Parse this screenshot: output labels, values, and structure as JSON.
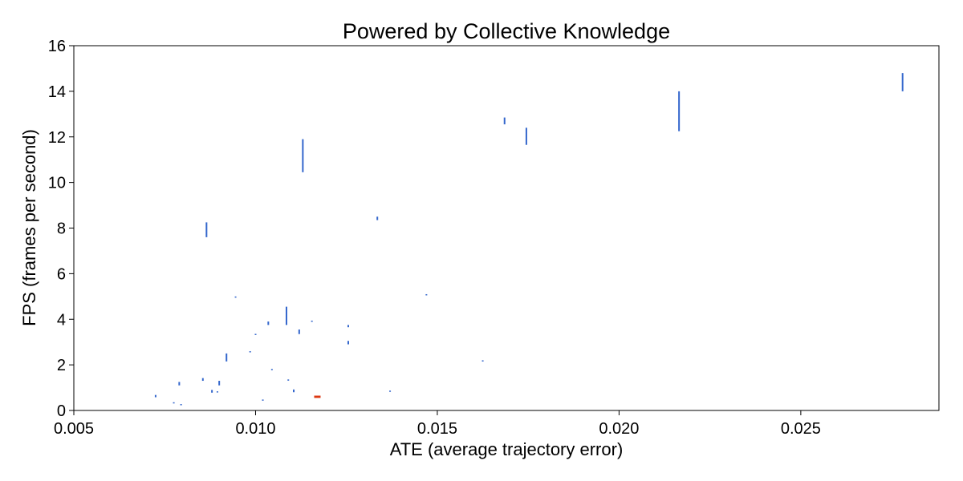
{
  "chart_data": {
    "type": "scatter",
    "title": "Powered by Collective Knowledge",
    "xlabel": "ATE (average trajectory error)",
    "ylabel": "FPS (frames per second)",
    "xlim": [
      0.005,
      0.0288
    ],
    "ylim": [
      0,
      16
    ],
    "xticks": [
      "0.005",
      "0.010",
      "0.015",
      "0.020",
      "0.025"
    ],
    "yticks": [
      "0",
      "2",
      "4",
      "6",
      "8",
      "10",
      "12",
      "14",
      "16"
    ],
    "grid": false,
    "legend": "none",
    "colors": {
      "default": "#3366cc",
      "highlight": "#dc3912"
    },
    "points": [
      {
        "x": 0.00725,
        "y_low": 0.58,
        "y_high": 0.68
      },
      {
        "x": 0.00775,
        "y_low": 0.33,
        "y_high": 0.36
      },
      {
        "x": 0.0079,
        "y_low": 1.1,
        "y_high": 1.25
      },
      {
        "x": 0.00795,
        "y_low": 0.25,
        "y_high": 0.28
      },
      {
        "x": 0.00855,
        "y_low": 1.3,
        "y_high": 1.42
      },
      {
        "x": 0.00865,
        "y_low": 7.6,
        "y_high": 8.25
      },
      {
        "x": 0.0088,
        "y_low": 0.78,
        "y_high": 0.9
      },
      {
        "x": 0.00895,
        "y_low": 0.8,
        "y_high": 0.84
      },
      {
        "x": 0.009,
        "y_low": 1.1,
        "y_high": 1.3
      },
      {
        "x": 0.0092,
        "y_low": 2.15,
        "y_high": 2.5
      },
      {
        "x": 0.00945,
        "y_low": 4.95,
        "y_high": 5.0
      },
      {
        "x": 0.00985,
        "y_low": 2.55,
        "y_high": 2.6
      },
      {
        "x": 0.01,
        "y_low": 3.32,
        "y_high": 3.36
      },
      {
        "x": 0.0102,
        "y_low": 0.45,
        "y_high": 0.48
      },
      {
        "x": 0.01035,
        "y_low": 3.75,
        "y_high": 3.9
      },
      {
        "x": 0.01045,
        "y_low": 1.78,
        "y_high": 1.82
      },
      {
        "x": 0.01085,
        "y_low": 3.75,
        "y_high": 4.55
      },
      {
        "x": 0.0109,
        "y_low": 1.32,
        "y_high": 1.36
      },
      {
        "x": 0.01105,
        "y_low": 0.8,
        "y_high": 0.92
      },
      {
        "x": 0.0112,
        "y_low": 3.35,
        "y_high": 3.55
      },
      {
        "x": 0.0113,
        "y_low": 10.45,
        "y_high": 11.9
      },
      {
        "x": 0.01155,
        "y_low": 3.9,
        "y_high": 3.94
      },
      {
        "x": 0.0117,
        "y_low": 0.55,
        "y_high": 0.65,
        "highlight": true
      },
      {
        "x": 0.01255,
        "y_low": 3.65,
        "y_high": 3.75
      },
      {
        "x": 0.01255,
        "y_low": 2.9,
        "y_high": 3.05
      },
      {
        "x": 0.01335,
        "y_low": 8.35,
        "y_high": 8.5
      },
      {
        "x": 0.0137,
        "y_low": 0.83,
        "y_high": 0.87
      },
      {
        "x": 0.0147,
        "y_low": 5.05,
        "y_high": 5.1
      },
      {
        "x": 0.01625,
        "y_low": 2.15,
        "y_high": 2.2
      },
      {
        "x": 0.01685,
        "y_low": 12.55,
        "y_high": 12.85
      },
      {
        "x": 0.01745,
        "y_low": 11.65,
        "y_high": 12.4
      },
      {
        "x": 0.02165,
        "y_low": 12.25,
        "y_high": 14.0
      },
      {
        "x": 0.0278,
        "y_low": 14.0,
        "y_high": 14.8
      }
    ]
  }
}
